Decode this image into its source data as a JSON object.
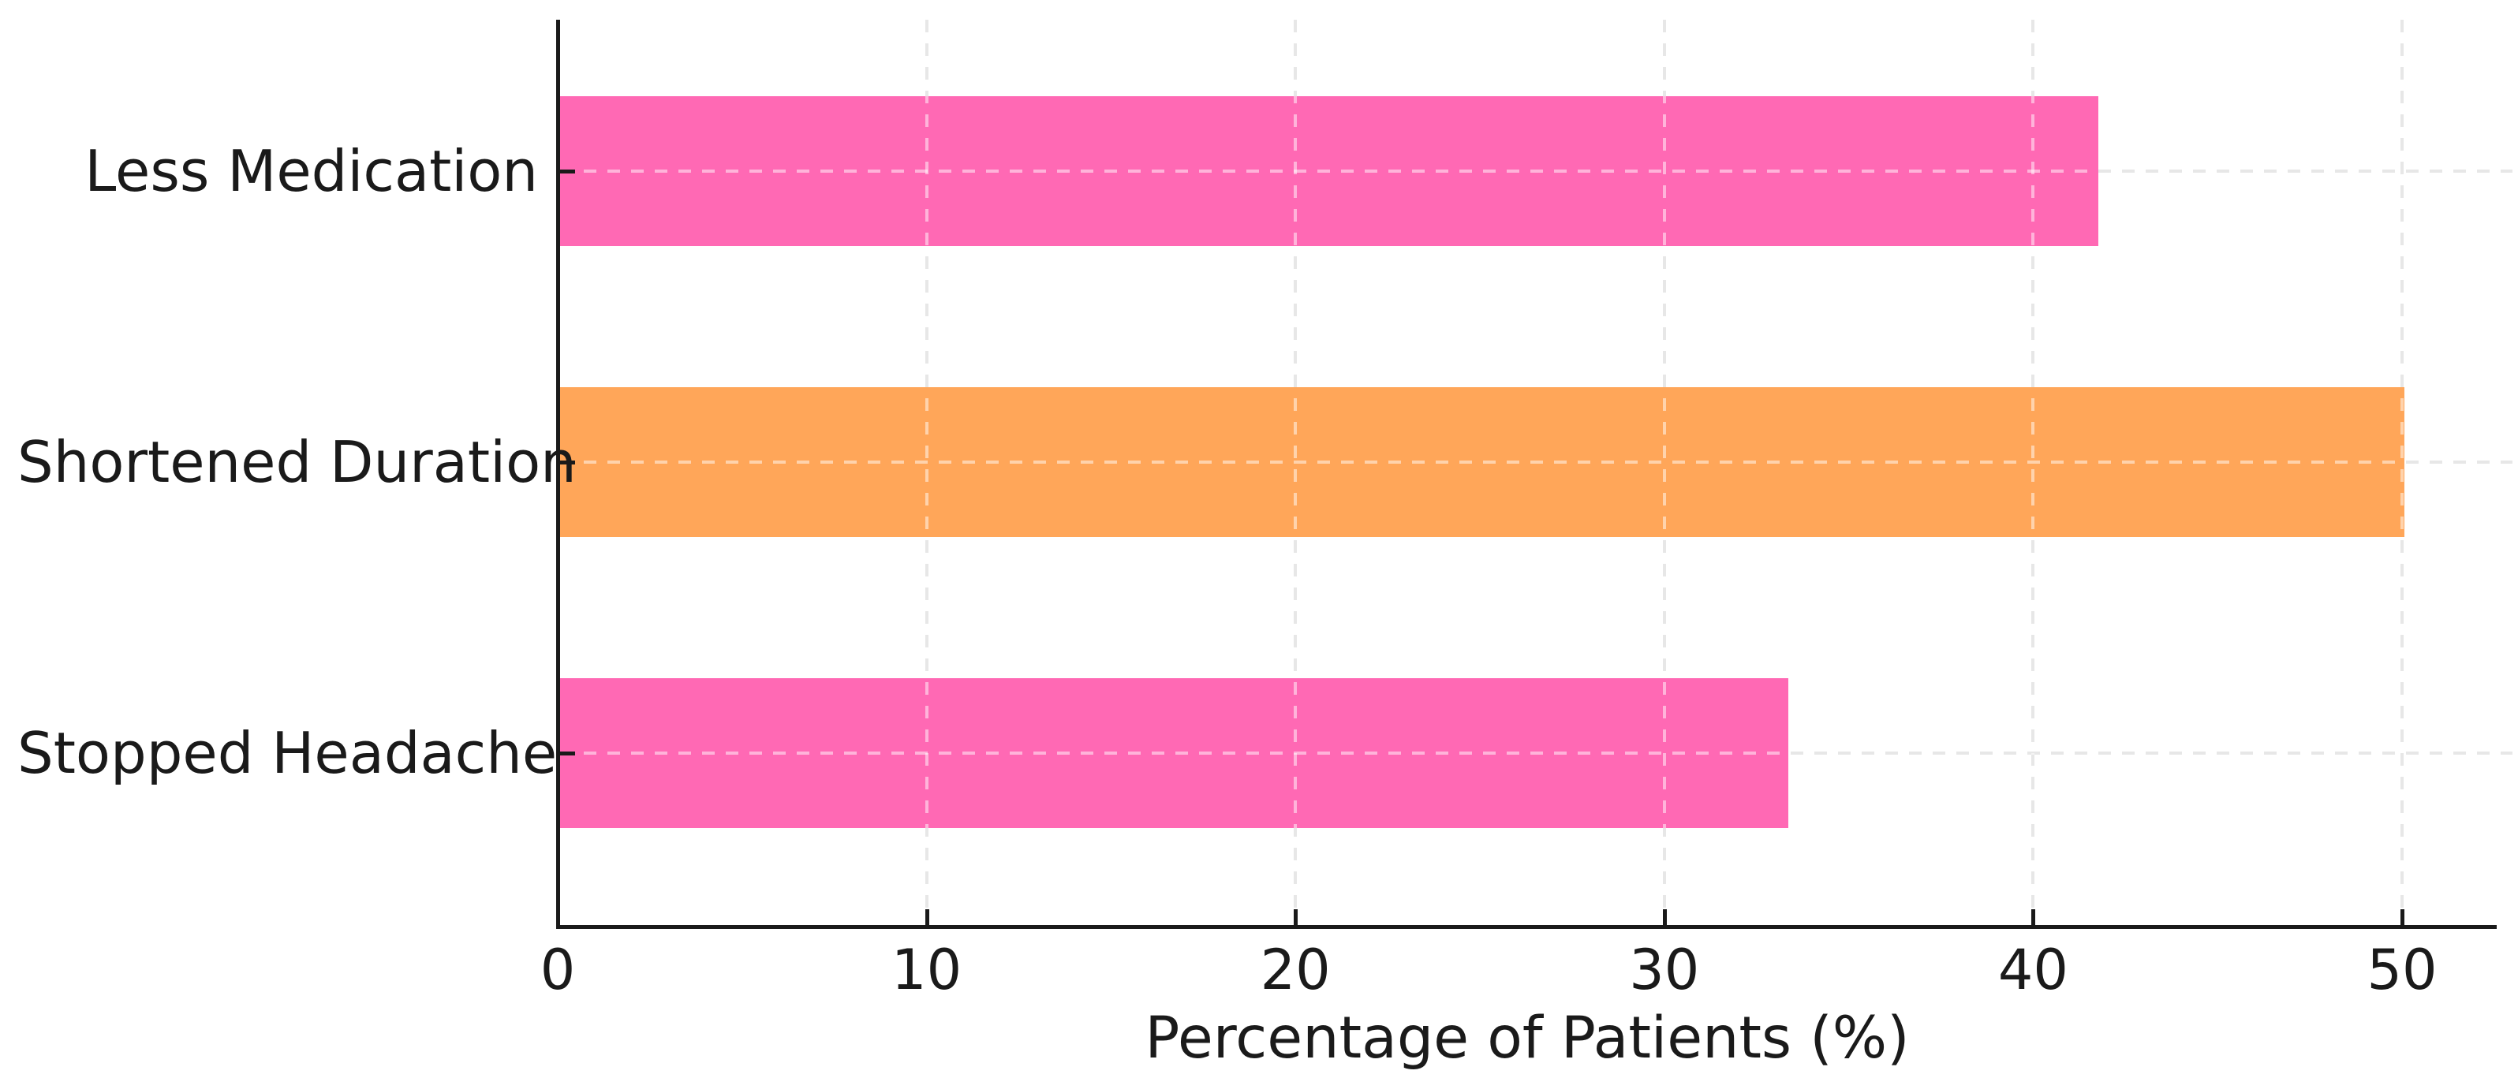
{
  "chart_data": {
    "type": "bar",
    "orientation": "horizontal",
    "title": "",
    "xlabel": "Percentage of Patients (%)",
    "ylabel": "",
    "categories": [
      "Less Medication",
      "Shortened Duration",
      "Stopped Headache"
    ],
    "values": [
      41.7,
      50,
      33.3
    ],
    "bar_colors": [
      "#FF69B4",
      "#FFA659",
      "#FF69B4"
    ],
    "x_ticks": [
      0,
      10,
      20,
      30,
      40,
      50
    ],
    "xlim": [
      0,
      52.6
    ],
    "grid": "dashed",
    "grid_on": true,
    "legend": "none",
    "colors": {
      "grid_line": "#CFCFCF",
      "grid_over_bar_highlight": "rgba(255,255,255,0.5)",
      "axis": "#1A1A1A",
      "text": "#1A1A1A",
      "background": "#FFFFFF",
      "pink_bar": "#FF69B4",
      "orange_bar": "#FFA659"
    }
  }
}
